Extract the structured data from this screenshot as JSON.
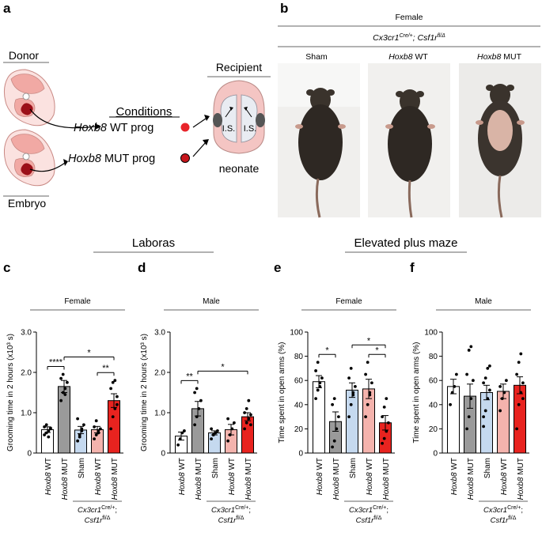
{
  "panels": {
    "a": {
      "letter": "a",
      "donor_label": "Donor",
      "embryo_label": "Embryo",
      "conditions_title": "Conditions",
      "cond_wt_gene": "Hoxb8",
      "cond_wt_rest": " WT prog",
      "cond_mut_gene": "Hoxb8",
      "cond_mut_rest": " MUT prog",
      "recipient_label": "Recipient",
      "is_label_left": "I.S.",
      "is_label_right": "I.S.",
      "neonate_label": "neonate",
      "colors": {
        "wt_dot": "#e8242a",
        "mut_dot": "#c7161c",
        "tissue": "#f5c6c2",
        "brain": "#f2b9b6",
        "bleed": "#8b0f15"
      }
    },
    "b": {
      "letter": "b",
      "sex_label": "Female",
      "genotype_main": "Cx3cr1",
      "genotype_sup1": "Cre/+",
      "genotype_mid": "; Csf1r",
      "genotype_sup2": "fl/Δ",
      "groups": [
        {
          "gene": "",
          "rest": "Sham"
        },
        {
          "gene": "Hoxb8",
          "rest": " WT"
        },
        {
          "gene": "Hoxb8",
          "rest": " MUT"
        }
      ]
    },
    "header_laboras": "Laboras",
    "header_epm": "Elevated plus maze",
    "common_xlabels": [
      {
        "gene": "Hoxb8",
        "rest": " WT"
      },
      {
        "gene": "Hoxb8",
        "rest": " MUT"
      },
      {
        "gene": "",
        "rest": "Sham"
      },
      {
        "gene": "Hoxb8",
        "rest": " WT"
      },
      {
        "gene": "Hoxb8",
        "rest": " MUT"
      }
    ],
    "genotype_footer": {
      "line1_main": "Cx3cr1",
      "line1_sup": "Cre/+",
      "line1_tail": ";",
      "line2_main": "Csf1r",
      "line2_sup": "fl/Δ"
    }
  },
  "chart_data": [
    {
      "panel": "c",
      "type": "bar",
      "sex_label": "Female",
      "ylabel": "Grooming time in 2 hours (x10³ s)",
      "ylim": [
        0,
        3.0
      ],
      "yticks": [
        "0",
        "1.0",
        "2.0",
        "3.0"
      ],
      "categories": [
        "Hoxb8 WT",
        "Hoxb8 MUT",
        "Sham",
        "Hoxb8 WT",
        "Hoxb8 MUT"
      ],
      "values": [
        0.58,
        1.65,
        0.57,
        0.58,
        1.3
      ],
      "errors": [
        0.07,
        0.15,
        0.09,
        0.08,
        0.17
      ],
      "colors": [
        "#ffffff",
        "#9a9a9a",
        "#c5d9ef",
        "#f4b3ad",
        "#e8231f"
      ],
      "points": [
        [
          0.45,
          0.5,
          0.55,
          0.6,
          0.65,
          0.7,
          0.4,
          0.62
        ],
        [
          1.3,
          1.5,
          1.6,
          1.75,
          1.85,
          1.95,
          1.45
        ],
        [
          0.3,
          0.45,
          0.55,
          0.7,
          0.85,
          0.4,
          0.6
        ],
        [
          0.35,
          0.45,
          0.5,
          0.6,
          0.65,
          0.8,
          0.55
        ],
        [
          0.6,
          0.9,
          1.1,
          1.4,
          1.6,
          1.75,
          1.8,
          1.2
        ]
      ],
      "significance": [
        {
          "from": 0,
          "to": 1,
          "label": "****"
        },
        {
          "from": 3,
          "to": 4,
          "label": "**"
        },
        {
          "from": 1,
          "to": 4,
          "label": "*"
        }
      ]
    },
    {
      "panel": "d",
      "type": "bar",
      "sex_label": "Male",
      "ylabel": "Grooming time in 2 hours (x10³ s)",
      "ylim": [
        0,
        3.0
      ],
      "yticks": [
        "0",
        "1.0",
        "2.0",
        "3.0"
      ],
      "categories": [
        "Hoxb8 WT",
        "Hoxb8 MUT",
        "Sham",
        "Hoxb8 WT",
        "Hoxb8 MUT"
      ],
      "values": [
        0.42,
        1.1,
        0.5,
        0.58,
        0.9
      ],
      "errors": [
        0.1,
        0.18,
        0.05,
        0.13,
        0.1
      ],
      "colors": [
        "#ffffff",
        "#9a9a9a",
        "#c5d9ef",
        "#f4b3ad",
        "#e8231f"
      ],
      "points": [
        [
          0.2,
          0.35,
          0.5,
          0.55
        ],
        [
          0.7,
          0.9,
          1.1,
          1.3,
          1.5,
          1.6
        ],
        [
          0.35,
          0.45,
          0.5,
          0.55,
          0.6,
          0.45
        ],
        [
          0.3,
          0.45,
          0.6,
          0.75,
          0.85
        ],
        [
          0.6,
          0.75,
          0.85,
          0.95,
          1.0,
          1.1,
          1.3,
          0.7
        ]
      ],
      "significance": [
        {
          "from": 0,
          "to": 1,
          "label": "**"
        },
        {
          "from": 1,
          "to": 4,
          "label": "*"
        }
      ]
    },
    {
      "panel": "e",
      "type": "bar",
      "sex_label": "Female",
      "ylabel": "Time spent in open arms (%)",
      "ylim": [
        0,
        100
      ],
      "yticks": [
        "0",
        "20",
        "40",
        "60",
        "80",
        "100"
      ],
      "categories": [
        "Hoxb8 WT",
        "Hoxb8 MUT",
        "Sham",
        "Hoxb8 WT",
        "Hoxb8 MUT"
      ],
      "values": [
        59,
        26,
        52,
        53,
        25
      ],
      "errors": [
        5,
        8,
        6,
        8,
        6
      ],
      "colors": [
        "#ffffff",
        "#9a9a9a",
        "#c5d9ef",
        "#f4b3ad",
        "#e8231f"
      ],
      "points": [
        [
          45,
          52,
          58,
          62,
          68,
          75,
          55
        ],
        [
          5,
          10,
          20,
          30,
          40,
          45
        ],
        [
          30,
          40,
          50,
          55,
          62,
          70,
          48
        ],
        [
          30,
          40,
          50,
          58,
          65,
          75,
          48
        ],
        [
          8,
          12,
          18,
          25,
          30,
          38,
          45
        ]
      ],
      "significance": [
        {
          "from": 0,
          "to": 1,
          "label": "*"
        },
        {
          "from": 3,
          "to": 4,
          "label": "*"
        },
        {
          "from": 2,
          "to": 4,
          "label": "*"
        }
      ]
    },
    {
      "panel": "f",
      "type": "bar",
      "sex_label": "Male",
      "ylabel": "Time spent in open arms (%)",
      "ylim": [
        0,
        100
      ],
      "yticks": [
        "0",
        "20",
        "40",
        "60",
        "80",
        "100"
      ],
      "categories": [
        "Hoxb8 WT",
        "Hoxb8 MUT",
        "Sham",
        "Hoxb8 WT",
        "Hoxb8 MUT"
      ],
      "values": [
        55,
        47,
        50,
        51,
        56
      ],
      "errors": [
        6,
        10,
        6,
        6,
        7
      ],
      "colors": [
        "#ffffff",
        "#9a9a9a",
        "#c5d9ef",
        "#f4b3ad",
        "#e8231f"
      ],
      "points": [
        [
          40,
          50,
          55,
          65
        ],
        [
          20,
          30,
          45,
          60,
          65,
          85,
          88
        ],
        [
          22,
          35,
          45,
          52,
          58,
          62,
          70,
          72,
          30
        ],
        [
          35,
          45,
          50,
          60,
          55
        ],
        [
          20,
          40,
          50,
          58,
          65,
          75,
          82,
          45
        ]
      ],
      "significance": []
    }
  ]
}
